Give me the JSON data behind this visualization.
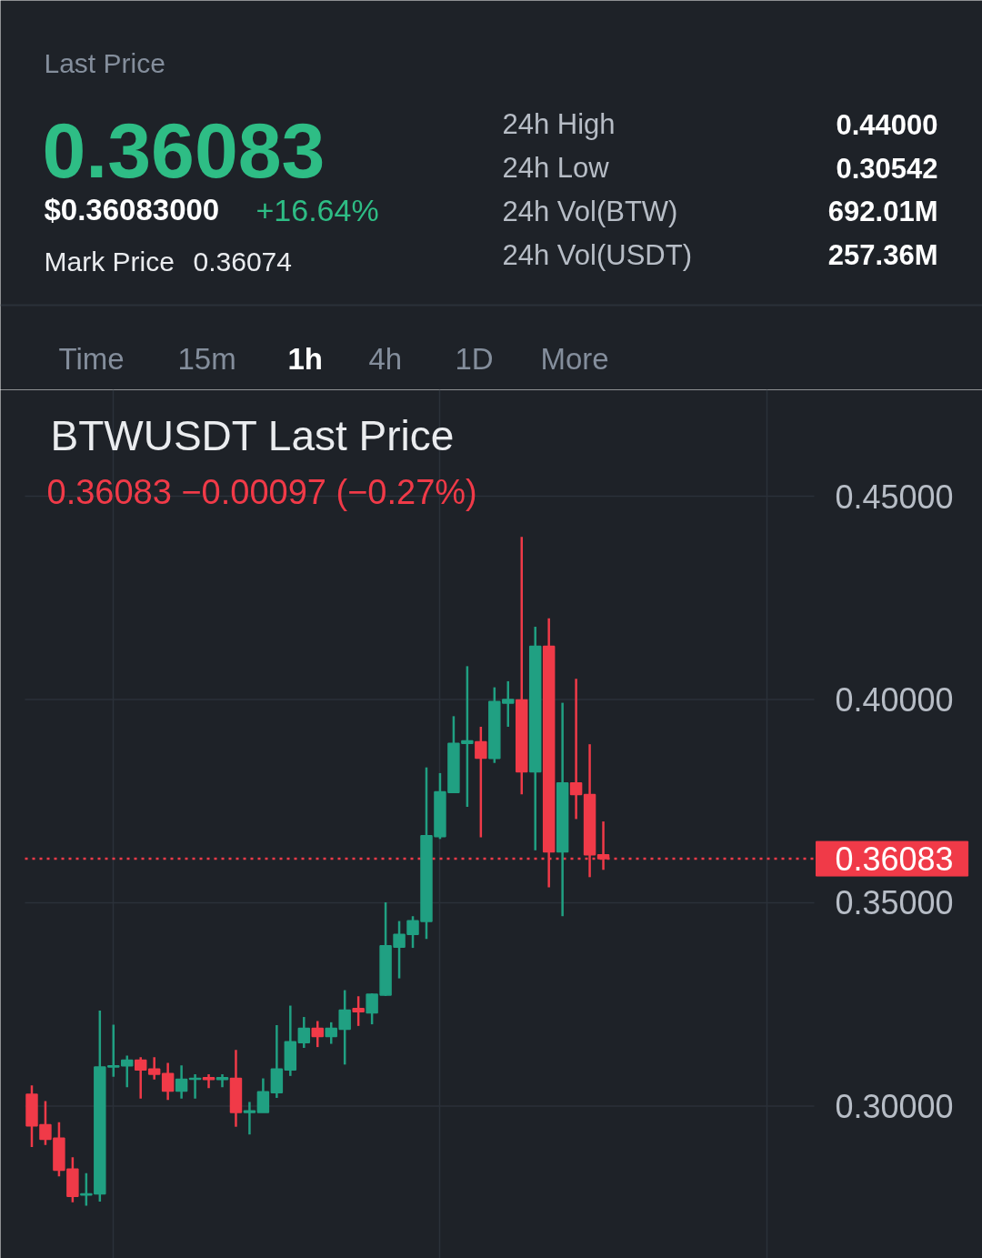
{
  "chart_data": [
    {
      "type": "other",
      "title": "Last Price",
      "annotations": [
        "0.36083",
        "$0.36083000",
        "+16.64%",
        "Mark Price",
        "0.36074",
        "24h High",
        "0.44000",
        "24h Low",
        "0.30542",
        "24h Vol(BTW)",
        "692.01M",
        "24h Vol(USDT)",
        "257.36M",
        "Time",
        "15m",
        "1h",
        "4h",
        "1D",
        "More"
      ]
    },
    {
      "type": "candlestick",
      "title": "BTWUSDT Last Price",
      "subtitle": "0.36083 −0.00097 (−0.27%)",
      "categories": [
        null,
        null,
        null,
        null,
        null,
        null,
        null,
        null,
        null,
        null,
        null,
        null,
        null,
        null,
        null,
        null,
        null,
        null,
        null,
        null,
        null,
        null,
        null,
        null,
        null,
        null,
        null,
        null,
        null,
        null,
        null,
        null,
        null,
        null,
        null,
        null,
        null,
        null,
        null,
        null,
        null,
        null,
        null,
        null,
        null,
        null,
        null,
        null,
        null,
        null,
        null,
        null,
        null,
        null,
        null,
        null,
        null,
        null
      ],
      "ohlc": [
        [
          0.3029,
          0.3051,
          0.2899,
          0.2951
        ],
        [
          0.2954,
          0.3012,
          0.2904,
          0.2918
        ],
        [
          0.2921,
          0.296,
          0.2827,
          0.2842
        ],
        [
          0.2845,
          0.2874,
          0.2763,
          0.2778
        ],
        [
          0.2781,
          0.2835,
          0.2755,
          0.2784
        ],
        [
          0.2784,
          0.3235,
          0.2765,
          0.3096
        ],
        [
          0.3096,
          0.32,
          0.3072,
          0.3099
        ],
        [
          0.3099,
          0.3124,
          0.3046,
          0.3113
        ],
        [
          0.3113,
          0.312,
          0.3018,
          0.3089
        ],
        [
          0.3091,
          0.312,
          0.3065,
          0.3078
        ],
        [
          0.308,
          0.3106,
          0.3015,
          0.3037
        ],
        [
          0.3037,
          0.31,
          0.3018,
          0.3066
        ],
        [
          0.3066,
          0.3078,
          0.3018,
          0.3068
        ],
        [
          0.307,
          0.3078,
          0.3044,
          0.3065
        ],
        [
          0.3065,
          0.3078,
          0.3046,
          0.307
        ],
        [
          0.3068,
          0.3138,
          0.2949,
          0.2984
        ],
        [
          0.2984,
          0.301,
          0.293,
          0.2988
        ],
        [
          0.2984,
          0.3068,
          0.2984,
          0.3035
        ],
        [
          0.3033,
          0.3199,
          0.302,
          0.3091
        ],
        [
          0.3089,
          0.3247,
          0.3074,
          0.3158
        ],
        [
          0.3156,
          0.3219,
          0.3143,
          0.3191
        ],
        [
          0.3191,
          0.3209,
          0.3145,
          0.3171
        ],
        [
          0.3171,
          0.3206,
          0.3153,
          0.3191
        ],
        [
          0.3189,
          0.3285,
          0.3102,
          0.3236
        ],
        [
          0.324,
          0.327,
          0.3197,
          0.3232
        ],
        [
          0.3229,
          0.3277,
          0.3201,
          0.3275
        ],
        [
          0.3273,
          0.3501,
          0.3271,
          0.3394
        ],
        [
          0.3391,
          0.3455,
          0.3314,
          0.3422
        ],
        [
          0.3422,
          0.3467,
          0.3389,
          0.3456
        ],
        [
          0.3454,
          0.3833,
          0.3411,
          0.3665
        ],
        [
          0.3663,
          0.3819,
          0.3657,
          0.3773
        ],
        [
          0.3771,
          0.3959,
          0.3771,
          0.3892
        ],
        [
          0.3892,
          0.4082,
          0.3736,
          0.3898
        ],
        [
          0.3896,
          0.3933,
          0.3661,
          0.3856
        ],
        [
          0.3855,
          0.403,
          0.3844,
          0.3995
        ],
        [
          0.3991,
          0.4045,
          0.3933,
          0.4
        ],
        [
          0.3999,
          0.44,
          0.3767,
          0.3822
        ],
        [
          0.3822,
          0.4179,
          0.3629,
          0.4131
        ],
        [
          0.4131,
          0.42,
          0.3538,
          0.3625
        ],
        [
          0.3625,
          0.3992,
          0.3467,
          0.3795
        ],
        [
          0.3795,
          0.4051,
          0.3706,
          0.3766
        ],
        [
          0.3766,
          0.389,
          0.3563,
          0.3618
        ],
        [
          0.3618,
          0.37,
          0.3581,
          0.36083
        ],
        null,
        null,
        null,
        null,
        null,
        null,
        null,
        null,
        null,
        null,
        null,
        null,
        null,
        null,
        null
      ],
      "colors": [
        "#f03a48",
        "#f03a48",
        "#f03a48",
        "#f03a48",
        "#20a082",
        "#20a082",
        "#20a082",
        "#20a082",
        "#f03a48",
        "#f03a48",
        "#f03a48",
        "#20a082",
        "#20a082",
        "#f03a48",
        "#20a082",
        "#f03a48",
        "#20a082",
        "#20a082",
        "#20a082",
        "#20a082",
        "#20a082",
        "#f03a48",
        "#20a082",
        "#20a082",
        "#f03a48",
        "#20a082",
        "#20a082",
        "#20a082",
        "#20a082",
        "#20a082",
        "#20a082",
        "#20a082",
        "#20a082",
        "#f03a48",
        "#20a082",
        "#20a082",
        "#f03a48",
        "#20a082",
        "#f03a48",
        "#20a082",
        "#f03a48",
        "#f03a48",
        "#f03a48",
        null,
        null,
        null,
        null,
        null,
        null,
        null,
        null,
        null,
        null,
        null,
        null,
        null,
        null,
        null
      ],
      "ylim": [
        0.2625,
        0.4762
      ],
      "yticks": [
        {
          "value": 0.3,
          "label": "0.30000"
        },
        {
          "value": 0.35,
          "label": "0.35000"
        },
        {
          "value": 0.4,
          "label": "0.40000"
        },
        {
          "value": 0.45,
          "label": "0.45000"
        }
      ],
      "tick_labels": "y",
      "grid": true,
      "ref_lines": [
        {
          "axis": "y",
          "value": 0.36083,
          "label": "0.36083",
          "color": "#f03a48",
          "line_style": "dotted"
        }
      ]
    }
  ]
}
